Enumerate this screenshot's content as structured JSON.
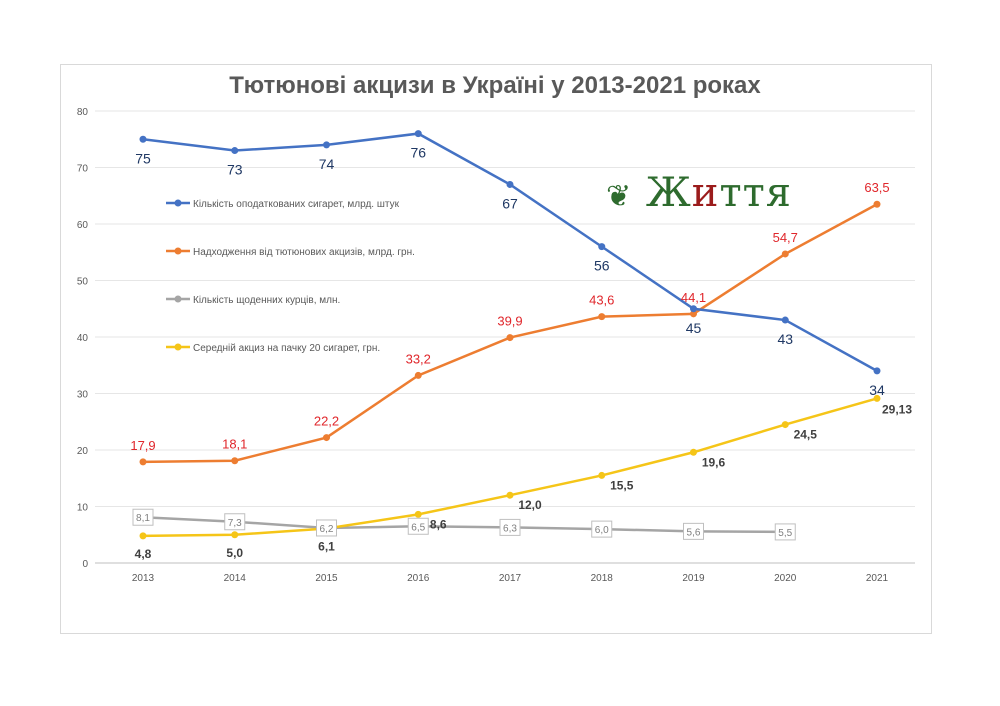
{
  "chart_data": {
    "type": "line",
    "title": "Тютюнові акцизи в Україні у 2013-2021 роках",
    "x": [
      "2013",
      "2014",
      "2015",
      "2016",
      "2017",
      "2018",
      "2019",
      "2020",
      "2021"
    ],
    "ylim": [
      0,
      80
    ],
    "yticks": [
      "0",
      "10",
      "20",
      "30",
      "40",
      "50",
      "60",
      "70",
      "80"
    ],
    "grid": true,
    "legend_position": "left",
    "series": [
      {
        "name": "Кількість оподаткованих сигарет, млрд. штук",
        "color": "#4472c4",
        "label_color": "#1f3864",
        "values": [
          75,
          73,
          74,
          76,
          67,
          56,
          45,
          43,
          34
        ],
        "labels": [
          "75",
          "73",
          "74",
          "76",
          "67",
          "56",
          "45",
          "43",
          "34"
        ]
      },
      {
        "name": "Надходження від тютюнових акцизів, млрд. грн.",
        "color": "#ed7d31",
        "label_color": "#e0262b",
        "values": [
          17.9,
          18.1,
          22.2,
          33.2,
          39.9,
          43.6,
          44.1,
          54.7,
          63.5
        ],
        "labels": [
          "17,9",
          "18,1",
          "22,2",
          "33,2",
          "39,9",
          "43,6",
          "44,1",
          "54,7",
          "63,5"
        ]
      },
      {
        "name": "Кількість щоденних курців, млн.",
        "color": "#a5a5a5",
        "label_color": "#7f7f7f",
        "values": [
          8.1,
          7.3,
          6.2,
          6.5,
          6.3,
          6.0,
          5.6,
          5.5,
          null
        ],
        "labels": [
          "8,1",
          "7,3",
          "6,2",
          "6,5",
          "6,3",
          "6,0",
          "5,6",
          "5,5",
          null
        ]
      },
      {
        "name": "Середній акциз на пачку 20 сигарет, грн.",
        "color": "#f5c518",
        "label_color": "#404040",
        "values": [
          4.8,
          5.0,
          6.1,
          8.6,
          12.0,
          15.5,
          19.6,
          24.5,
          29.13
        ],
        "labels": [
          "4,8",
          "5,0",
          "6,1",
          "8,6",
          "12,0",
          "15,5",
          "19,6",
          "24,5",
          "29,13"
        ]
      }
    ]
  },
  "logo": {
    "text": "Життя"
  }
}
